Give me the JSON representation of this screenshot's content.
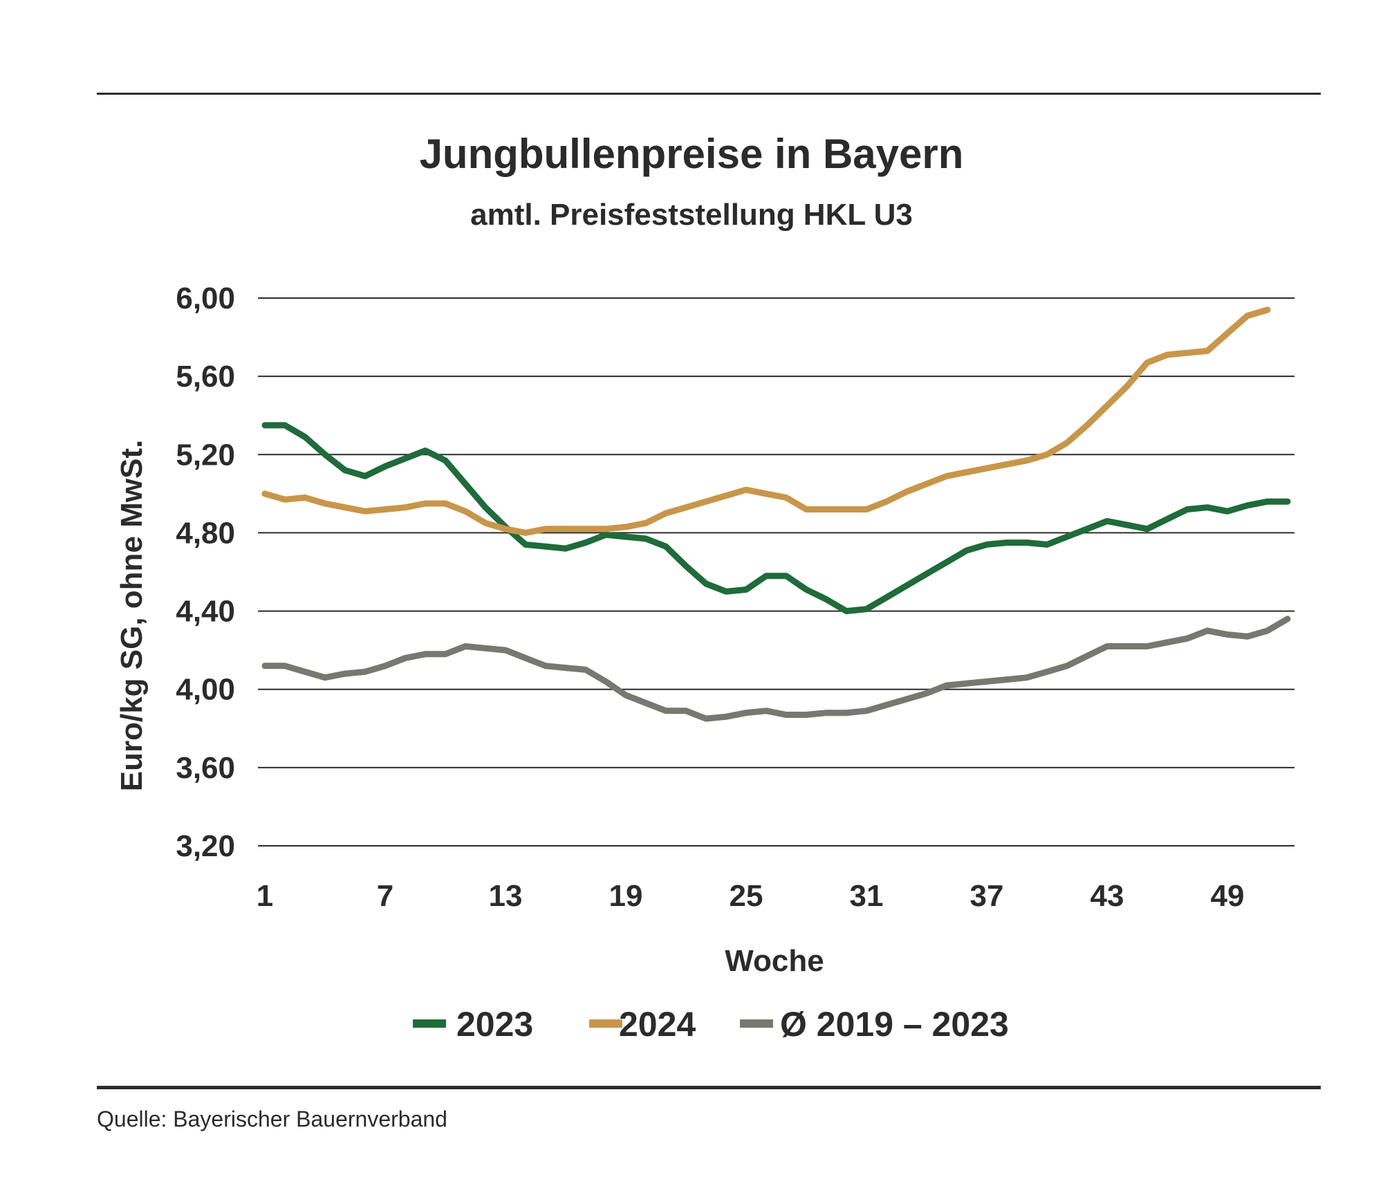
{
  "header": {
    "title": "Jungbullenpreise in Bayern",
    "subtitle": "amtl. Preisfeststellung HKL U3"
  },
  "footer": {
    "source": "Quelle: Bayerischer Bauernverband"
  },
  "colors": {
    "2023": "#1f6b3a",
    "2024": "#c8964a",
    "avg": "#77786f",
    "grid": "#2b2b2b"
  },
  "chart_data": {
    "type": "line",
    "xlabel": "Woche",
    "ylabel": "Euro/kg SG, ohne MwSt.",
    "ylim": [
      3.2,
      6.0
    ],
    "xlim": [
      1,
      52
    ],
    "yticks": [
      "6,00",
      "5,60",
      "5,20",
      "4,80",
      "4,40",
      "4,00",
      "3,60",
      "3,20"
    ],
    "ytick_values": [
      6.0,
      5.6,
      5.2,
      4.8,
      4.4,
      4.0,
      3.6,
      3.2
    ],
    "xticks": [
      "1",
      "7",
      "13",
      "19",
      "25",
      "31",
      "37",
      "43",
      "49"
    ],
    "xtick_values": [
      1,
      7,
      13,
      19,
      25,
      31,
      37,
      43,
      49
    ],
    "grid": true,
    "legend_position": "bottom",
    "series": [
      {
        "name": "2023",
        "color": "#1f6b3a",
        "x": [
          1,
          2,
          3,
          4,
          5,
          6,
          7,
          8,
          9,
          10,
          11,
          12,
          13,
          14,
          15,
          16,
          17,
          18,
          19,
          20,
          21,
          22,
          23,
          24,
          25,
          26,
          27,
          28,
          29,
          30,
          31,
          32,
          33,
          34,
          35,
          36,
          37,
          38,
          39,
          40,
          41,
          42,
          43,
          44,
          45,
          46,
          47,
          48,
          49,
          50,
          51,
          52
        ],
        "values": [
          5.35,
          5.35,
          5.29,
          5.2,
          5.12,
          5.09,
          5.14,
          5.18,
          5.22,
          5.17,
          5.05,
          4.93,
          4.83,
          4.74,
          4.73,
          4.72,
          4.75,
          4.79,
          4.78,
          4.77,
          4.73,
          4.63,
          4.54,
          4.5,
          4.51,
          4.58,
          4.58,
          4.51,
          4.46,
          4.4,
          4.41,
          4.47,
          4.53,
          4.59,
          4.65,
          4.71,
          4.74,
          4.75,
          4.75,
          4.74,
          4.78,
          4.82,
          4.86,
          4.84,
          4.82,
          4.87,
          4.92,
          4.93,
          4.91,
          4.94,
          4.96,
          4.96
        ]
      },
      {
        "name": "2024",
        "color": "#c8964a",
        "x": [
          1,
          2,
          3,
          4,
          5,
          6,
          7,
          8,
          9,
          10,
          11,
          12,
          13,
          14,
          15,
          16,
          17,
          18,
          19,
          20,
          21,
          22,
          23,
          24,
          25,
          26,
          27,
          28,
          29,
          30,
          31,
          32,
          33,
          34,
          35,
          36,
          37,
          38,
          39,
          40,
          41,
          42,
          43,
          44,
          45,
          46,
          47,
          48,
          49,
          50,
          51
        ],
        "values": [
          5.0,
          4.97,
          4.98,
          4.95,
          4.93,
          4.91,
          4.92,
          4.93,
          4.95,
          4.95,
          4.91,
          4.85,
          4.82,
          4.8,
          4.82,
          4.82,
          4.82,
          4.82,
          4.83,
          4.85,
          4.9,
          4.93,
          4.96,
          4.99,
          5.02,
          5.0,
          4.98,
          4.92,
          4.92,
          4.92,
          4.92,
          4.96,
          5.01,
          5.05,
          5.09,
          5.11,
          5.13,
          5.15,
          5.17,
          5.2,
          5.26,
          5.35,
          5.45,
          5.55,
          5.67,
          5.71,
          5.72,
          5.73,
          5.82,
          5.91,
          5.94
        ]
      },
      {
        "name": "Ø 2019 – 2023",
        "color": "#77786f",
        "x": [
          1,
          2,
          3,
          4,
          5,
          6,
          7,
          8,
          9,
          10,
          11,
          12,
          13,
          14,
          15,
          16,
          17,
          18,
          19,
          20,
          21,
          22,
          23,
          24,
          25,
          26,
          27,
          28,
          29,
          30,
          31,
          32,
          33,
          34,
          35,
          36,
          37,
          38,
          39,
          40,
          41,
          42,
          43,
          44,
          45,
          46,
          47,
          48,
          49,
          50,
          51,
          52
        ],
        "values": [
          4.12,
          4.12,
          4.09,
          4.06,
          4.08,
          4.09,
          4.12,
          4.16,
          4.18,
          4.18,
          4.22,
          4.21,
          4.2,
          4.16,
          4.12,
          4.11,
          4.1,
          4.04,
          3.97,
          3.93,
          3.89,
          3.89,
          3.85,
          3.86,
          3.88,
          3.89,
          3.87,
          3.87,
          3.88,
          3.88,
          3.89,
          3.92,
          3.95,
          3.98,
          4.02,
          4.03,
          4.04,
          4.05,
          4.06,
          4.09,
          4.12,
          4.17,
          4.22,
          4.22,
          4.22,
          4.24,
          4.26,
          4.3,
          4.28,
          4.27,
          4.3,
          4.36
        ]
      }
    ]
  }
}
